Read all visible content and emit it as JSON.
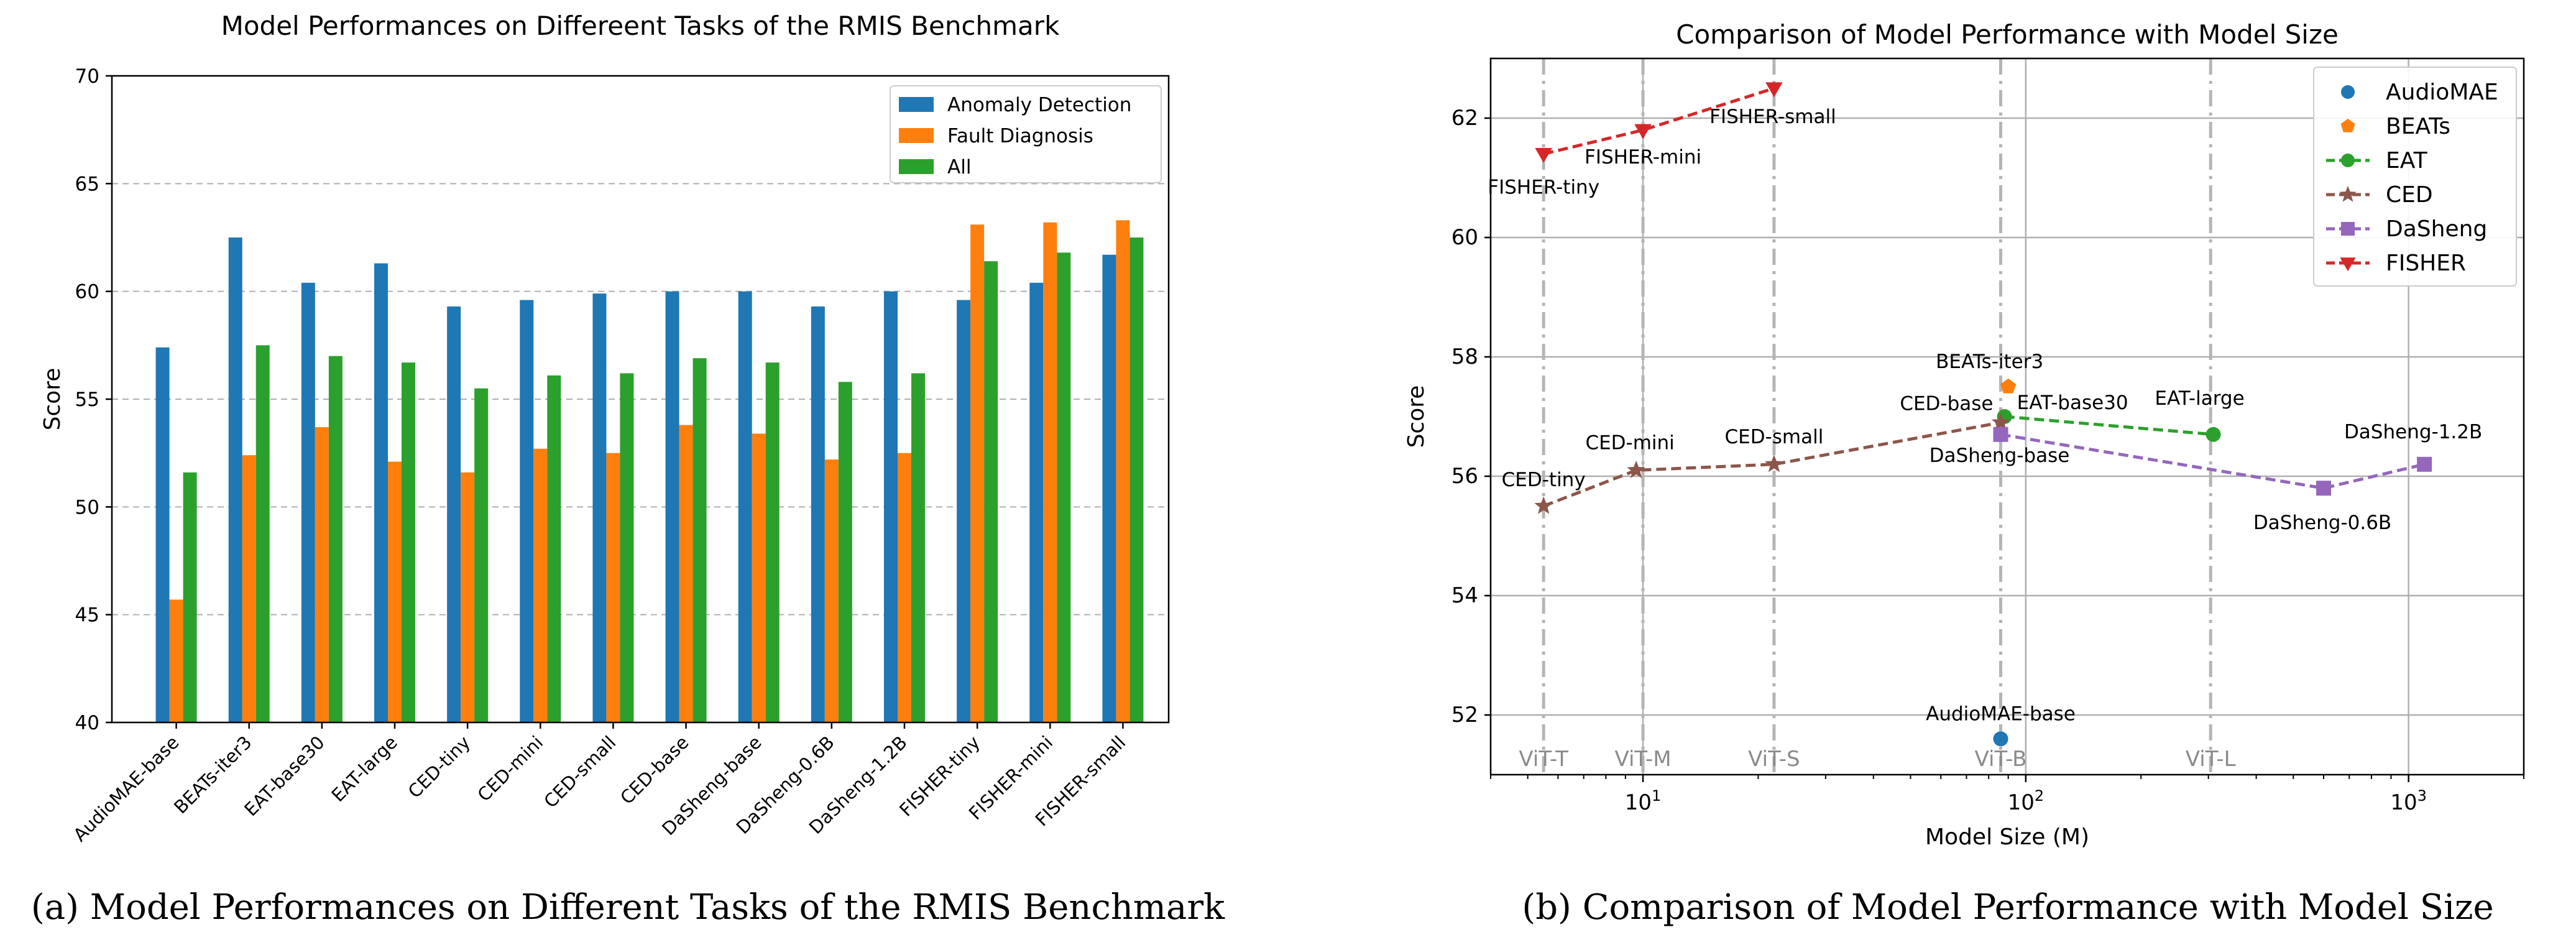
{
  "chart_data": [
    {
      "type": "bar",
      "title": "Model Performances on Differeent Tasks of the RMIS Benchmark",
      "caption": "(a) Model Performances on Different Tasks of the RMIS Benchmark",
      "xlabel": "",
      "ylabel": "Score",
      "ylim": [
        40,
        70
      ],
      "yticks": [
        40,
        45,
        50,
        55,
        60,
        65,
        70
      ],
      "grid": "y-dashed",
      "legend_position": "top-right",
      "categories": [
        "AudioMAE-base",
        "BEATs-iter3",
        "EAT-base30",
        "EAT-large",
        "CED-tiny",
        "CED-mini",
        "CED-small",
        "CED-base",
        "DaSheng-base",
        "DaSheng-0.6B",
        "DaSheng-1.2B",
        "FISHER-tiny",
        "FISHER-mini",
        "FISHER-small"
      ],
      "series": [
        {
          "name": "Anomaly Detection",
          "color": "#1f77b4",
          "values": [
            57.4,
            62.5,
            60.4,
            61.3,
            59.3,
            59.6,
            59.9,
            60.0,
            60.0,
            59.3,
            60.0,
            59.6,
            60.4,
            61.7
          ]
        },
        {
          "name": "Fault Diagnosis",
          "color": "#ff7f0e",
          "values": [
            45.7,
            52.4,
            53.7,
            52.1,
            51.6,
            52.7,
            52.5,
            53.8,
            53.4,
            52.2,
            52.5,
            63.1,
            63.2,
            63.3
          ]
        },
        {
          "name": "All",
          "color": "#2ca02c",
          "values": [
            51.6,
            57.5,
            57.0,
            56.7,
            55.5,
            56.1,
            56.2,
            56.9,
            56.7,
            55.8,
            56.2,
            61.4,
            61.8,
            62.5
          ]
        }
      ]
    },
    {
      "type": "scatter",
      "title": "Comparison of Model Performance with Model Size",
      "caption": "(b) Comparison of Model Performance with Model Size",
      "xlabel": "Model Size (M)",
      "ylabel": "Score",
      "xscale": "log",
      "xlim": [
        4,
        2000
      ],
      "ylim": [
        51,
        63
      ],
      "xticks": [
        10,
        100,
        1000
      ],
      "xtick_labels": [
        "10^1",
        "10^2",
        "10^3"
      ],
      "yticks": [
        52,
        54,
        56,
        58,
        60,
        62
      ],
      "grid": "on",
      "legend_position": "top-right",
      "vlines": [
        {
          "x": 5.5,
          "label": "ViT-T"
        },
        {
          "x": 10,
          "label": "ViT-M"
        },
        {
          "x": 22,
          "label": "ViT-S"
        },
        {
          "x": 86,
          "label": "ViT-B"
        },
        {
          "x": 304,
          "label": "ViT-L"
        }
      ],
      "series": [
        {
          "name": "AudioMAE",
          "color": "#1f77b4",
          "marker": "circle",
          "line": false,
          "points": [
            {
              "x": 86,
              "y": 51.6,
              "label": "AudioMAE-base"
            }
          ]
        },
        {
          "name": "BEATs",
          "color": "#ff7f0e",
          "marker": "pentagon",
          "line": false,
          "points": [
            {
              "x": 90,
              "y": 57.5,
              "label": "BEATs-iter3"
            }
          ]
        },
        {
          "name": "EAT",
          "color": "#2ca02c",
          "marker": "circle",
          "line": true,
          "points": [
            {
              "x": 88,
              "y": 57.0,
              "label": "EAT-base30"
            },
            {
              "x": 309,
              "y": 56.7,
              "label": "EAT-large"
            }
          ]
        },
        {
          "name": "CED",
          "color": "#8c564b",
          "marker": "star",
          "line": true,
          "points": [
            {
              "x": 5.5,
              "y": 55.5,
              "label": "CED-tiny"
            },
            {
              "x": 9.6,
              "y": 56.1,
              "label": "CED-mini"
            },
            {
              "x": 22,
              "y": 56.2,
              "label": "CED-small"
            },
            {
              "x": 86,
              "y": 56.9,
              "label": "CED-base"
            }
          ]
        },
        {
          "name": "DaSheng",
          "color": "#9467bd",
          "marker": "square",
          "line": true,
          "points": [
            {
              "x": 86,
              "y": 56.7,
              "label": "DaSheng-base"
            },
            {
              "x": 600,
              "y": 55.8,
              "label": "DaSheng-0.6B"
            },
            {
              "x": 1100,
              "y": 56.2,
              "label": "DaSheng-1.2B"
            }
          ]
        },
        {
          "name": "FISHER",
          "color": "#d62728",
          "marker": "triangle-down",
          "line": true,
          "points": [
            {
              "x": 5.5,
              "y": 61.4,
              "label": "FISHER-tiny"
            },
            {
              "x": 10,
              "y": 61.8,
              "label": "FISHER-mini"
            },
            {
              "x": 22,
              "y": 62.5,
              "label": "FISHER-small"
            }
          ]
        }
      ]
    }
  ]
}
